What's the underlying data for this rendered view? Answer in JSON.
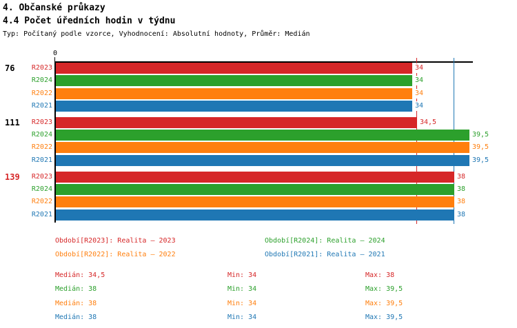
{
  "header": {
    "title1": "4. Občanské průkazy",
    "title2": "4.4 Počet úředních hodin v týdnu",
    "subtitle": "Typ: Počítaný podle vzorce, Vyhodnocení: Absolutní hodnoty, Průměr: Medián"
  },
  "colors": {
    "r2023": "#d62728",
    "r2024": "#2ca02c",
    "r2022": "#ff7f0e",
    "r2021": "#1f77b4",
    "axis": "#000000",
    "group_label_default": "#000000",
    "group_label_highlight": "#d62728"
  },
  "chart_data": {
    "type": "bar",
    "orientation": "horizontal",
    "value_axis": {
      "min": 0,
      "origin_tick_label": "0",
      "implied_max": 39.9,
      "decimal_separator": ","
    },
    "series": [
      {
        "id": "R2023",
        "label": "R2023",
        "color": "#d62728"
      },
      {
        "id": "R2024",
        "label": "R2024",
        "color": "#2ca02c"
      },
      {
        "id": "R2022",
        "label": "R2022",
        "color": "#ff7f0e"
      },
      {
        "id": "R2021",
        "label": "R2021",
        "color": "#1f77b4"
      }
    ],
    "groups": [
      {
        "label": "76",
        "label_color": "#000000",
        "values": [
          34,
          34,
          34,
          34
        ],
        "display": [
          "34",
          "34",
          "34",
          "34"
        ]
      },
      {
        "label": "111",
        "label_color": "#000000",
        "values": [
          34.5,
          39.5,
          39.5,
          39.5
        ],
        "display": [
          "34,5",
          "39,5",
          "39,5",
          "39,5"
        ]
      },
      {
        "label": "139",
        "label_color": "#d62728",
        "values": [
          38,
          38,
          38,
          38
        ],
        "display": [
          "38",
          "38",
          "38",
          "38"
        ]
      }
    ],
    "reference_lines": [
      {
        "value": 34.5,
        "color": "#d62728",
        "series": "R2023",
        "meaning": "median"
      },
      {
        "value": 38,
        "color": "#1f77b4",
        "series": "R2021",
        "meaning": "median"
      }
    ],
    "legend_position": "bottom",
    "grid": false
  },
  "legend": {
    "items": [
      {
        "text": "Období[R2023]: Realita – 2023",
        "color": "#d62728",
        "row": 0,
        "col": 0
      },
      {
        "text": "Období[R2024]: Realita – 2024",
        "color": "#2ca02c",
        "row": 0,
        "col": 1
      },
      {
        "text": "Období[R2022]: Realita – 2022",
        "color": "#ff7f0e",
        "row": 1,
        "col": 0
      },
      {
        "text": "Období[R2021]: Realita – 2021",
        "color": "#1f77b4",
        "row": 1,
        "col": 1
      }
    ]
  },
  "stats": {
    "rows": [
      {
        "series": "R2023",
        "color": "#d62728",
        "cells": [
          {
            "label": "Medián",
            "value": "34,5"
          },
          {
            "label": "Min",
            "value": "34"
          },
          {
            "label": "Max",
            "value": "38"
          }
        ],
        "median": 34.5,
        "min": 34,
        "max": 38
      },
      {
        "series": "R2024",
        "color": "#2ca02c",
        "cells": [
          {
            "label": "Medián",
            "value": "38"
          },
          {
            "label": "Min",
            "value": "34"
          },
          {
            "label": "Max",
            "value": "39,5"
          }
        ],
        "median": 38,
        "min": 34,
        "max": 39.5
      },
      {
        "series": "R2022",
        "color": "#ff7f0e",
        "cells": [
          {
            "label": "Medián",
            "value": "38"
          },
          {
            "label": "Min",
            "value": "34"
          },
          {
            "label": "Max",
            "value": "39,5"
          }
        ],
        "median": 38,
        "min": 34,
        "max": 39.5
      },
      {
        "series": "R2021",
        "color": "#1f77b4",
        "cells": [
          {
            "label": "Medián",
            "value": "38"
          },
          {
            "label": "Min",
            "value": "34"
          },
          {
            "label": "Max",
            "value": "39,5"
          }
        ],
        "median": 38,
        "min": 34,
        "max": 39.5
      }
    ]
  }
}
